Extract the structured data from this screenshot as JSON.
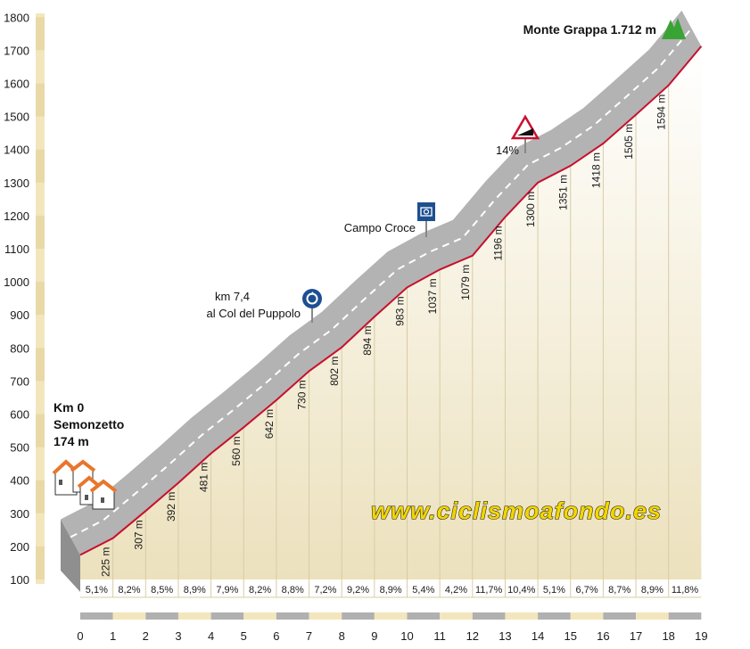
{
  "brand": "www.ciclismoafondo.es",
  "start": {
    "title": "Km 0",
    "name": "Semonzetto",
    "altitude": "174 m"
  },
  "summit": {
    "label": "Monte Grappa 1.712 m"
  },
  "pois": [
    {
      "lines": [
        "km 7,4",
        "al Col del Puppolo"
      ],
      "km": 7.4,
      "icon": "roundabout-icon"
    },
    {
      "lines": [
        "Campo Croce"
      ],
      "km": 10.8,
      "icon": "camera-icon"
    },
    {
      "lines": [
        "14%"
      ],
      "km": 13.7,
      "icon": "steep-grade-sign-icon"
    }
  ],
  "colors": {
    "road": "#b3b3b3",
    "profile_line": "#c8102e",
    "fill_top": "#ffffff",
    "fill_bottom": "#ece1bd",
    "axis_band": "#f3e6bd",
    "brand_text": "#f2d600",
    "summit_icon": "#3aa335",
    "sign_blue": "#1d4f91"
  },
  "chart_data": {
    "type": "area",
    "title": "",
    "xlabel": "",
    "ylabel": "",
    "xlim": [
      0,
      19
    ],
    "ylim": [
      100,
      1800
    ],
    "y_ticks": [
      100,
      200,
      300,
      400,
      500,
      600,
      700,
      800,
      900,
      1000,
      1100,
      1200,
      1300,
      1400,
      1500,
      1600,
      1700,
      1800
    ],
    "x_ticks": [
      0,
      1,
      2,
      3,
      4,
      5,
      6,
      7,
      8,
      9,
      10,
      11,
      12,
      13,
      14,
      15,
      16,
      17,
      18,
      19
    ],
    "profile": [
      {
        "km": 0,
        "alt": 174
      },
      {
        "km": 1,
        "alt": 225
      },
      {
        "km": 2,
        "alt": 307
      },
      {
        "km": 3,
        "alt": 392
      },
      {
        "km": 4,
        "alt": 481
      },
      {
        "km": 5,
        "alt": 560
      },
      {
        "km": 6,
        "alt": 642
      },
      {
        "km": 7,
        "alt": 730
      },
      {
        "km": 8,
        "alt": 802
      },
      {
        "km": 9,
        "alt": 894
      },
      {
        "km": 10,
        "alt": 983
      },
      {
        "km": 11,
        "alt": 1037
      },
      {
        "km": 12,
        "alt": 1079
      },
      {
        "km": 13,
        "alt": 1196
      },
      {
        "km": 14,
        "alt": 1300
      },
      {
        "km": 15,
        "alt": 1351
      },
      {
        "km": 16,
        "alt": 1418
      },
      {
        "km": 17,
        "alt": 1505
      },
      {
        "km": 18,
        "alt": 1594
      },
      {
        "km": 19,
        "alt": 1712
      }
    ],
    "elevation_labels": [
      {
        "km": 1,
        "label": "225 m"
      },
      {
        "km": 2,
        "label": "307 m"
      },
      {
        "km": 3,
        "label": "392 m"
      },
      {
        "km": 4,
        "label": "481 m"
      },
      {
        "km": 5,
        "label": "560 m"
      },
      {
        "km": 6,
        "label": "642 m"
      },
      {
        "km": 7,
        "label": "730 m"
      },
      {
        "km": 8,
        "label": "802 m"
      },
      {
        "km": 9,
        "label": "894 m"
      },
      {
        "km": 10,
        "label": "983 m"
      },
      {
        "km": 11,
        "label": "1037 m"
      },
      {
        "km": 12,
        "label": "1079 m"
      },
      {
        "km": 13,
        "label": "1196 m"
      },
      {
        "km": 14,
        "label": "1300 m"
      },
      {
        "km": 15,
        "label": "1351 m"
      },
      {
        "km": 16,
        "label": "1418 m"
      },
      {
        "km": 17,
        "label": "1505 m"
      },
      {
        "km": 18,
        "label": "1594 m"
      }
    ],
    "gradients": [
      "5,1%",
      "8,2%",
      "8,5%",
      "8,9%",
      "7,9%",
      "8,2%",
      "8,8%",
      "7,2%",
      "9,2%",
      "8,9%",
      "5,4%",
      "4,2%",
      "11,7%",
      "10,4%",
      "5,1%",
      "6,7%",
      "8,7%",
      "8,9%",
      "11,8%"
    ],
    "grid": true
  }
}
